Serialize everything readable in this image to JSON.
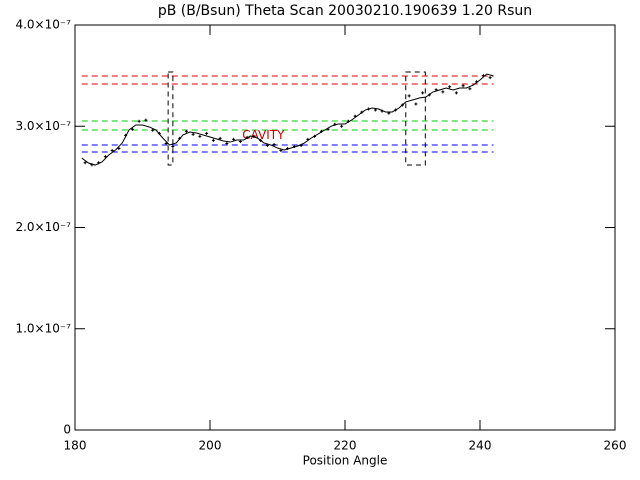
{
  "chart_data": {
    "type": "line",
    "title": "pB (B/Bsun) Theta Scan 20030210.190639 1.20 Rsun",
    "xlabel": "Position Angle",
    "xlim": [
      180,
      260
    ],
    "xticks": [
      180,
      200,
      220,
      240,
      260
    ],
    "ylim": [
      0,
      4e-07
    ],
    "yticks": [
      0,
      {
        "value": 1e-07,
        "label": "1.0×10⁻⁷"
      },
      {
        "value": 2e-07,
        "label": "2.0×10⁻⁷"
      },
      {
        "value": 3e-07,
        "label": "3.0×10⁻⁷"
      },
      {
        "value": 4e-07,
        "label": "4.0×10⁻⁷"
      }
    ],
    "series": [
      {
        "mode": "line",
        "color": "#000000",
        "x": [
          181,
          182,
          183,
          184,
          185,
          186,
          187,
          188,
          189,
          190,
          191,
          192,
          193,
          194,
          195,
          196,
          197,
          198,
          199,
          200,
          201,
          202,
          203,
          204,
          205,
          206,
          207,
          208,
          209,
          210,
          211,
          212,
          213,
          214,
          215,
          216,
          217,
          218,
          219,
          220,
          221,
          222,
          223,
          224,
          225,
          226,
          227,
          228,
          229,
          230,
          231,
          232,
          233,
          234,
          235,
          236,
          237,
          238,
          239,
          240,
          241,
          242
        ],
        "values": [
          2.686e-07,
          2.637e-07,
          2.617e-07,
          2.647e-07,
          2.716e-07,
          2.765e-07,
          2.835e-07,
          2.963e-07,
          3.012e-07,
          3.012e-07,
          2.993e-07,
          2.963e-07,
          2.884e-07,
          2.815e-07,
          2.835e-07,
          2.914e-07,
          2.943e-07,
          2.933e-07,
          2.914e-07,
          2.894e-07,
          2.874e-07,
          2.854e-07,
          2.844e-07,
          2.864e-07,
          2.864e-07,
          2.904e-07,
          2.884e-07,
          2.835e-07,
          2.815e-07,
          2.785e-07,
          2.765e-07,
          2.785e-07,
          2.805e-07,
          2.835e-07,
          2.884e-07,
          2.923e-07,
          2.963e-07,
          3.002e-07,
          3.022e-07,
          3.022e-07,
          3.062e-07,
          3.111e-07,
          3.16e-07,
          3.18e-07,
          3.17e-07,
          3.141e-07,
          3.141e-07,
          3.18e-07,
          3.24e-07,
          3.259e-07,
          3.279e-07,
          3.289e-07,
          3.338e-07,
          3.358e-07,
          3.378e-07,
          3.358e-07,
          3.378e-07,
          3.378e-07,
          3.407e-07,
          3.457e-07,
          3.516e-07,
          3.496e-07
        ]
      },
      {
        "mode": "markers",
        "color": "#000000",
        "x": [
          181.5,
          182.5,
          183.5,
          184.5,
          185.5,
          186.5,
          187.5,
          188.5,
          189.5,
          190.5,
          191.5,
          192.5,
          193.5,
          194.5,
          195.5,
          196.5,
          197.5,
          198.5,
          199.5,
          200.5,
          201.5,
          202.5,
          203.5,
          204.5,
          205.5,
          206.5,
          207.5,
          208.5,
          209.5,
          210.5,
          211.5,
          212.5,
          213.5,
          214.5,
          215.5,
          216.5,
          217.5,
          218.5,
          219.5,
          220.5,
          221.5,
          222.5,
          223.5,
          224.5,
          225.5,
          226.5,
          227.5,
          228.5,
          229.5,
          230.5,
          231.5,
          232.5,
          233.5,
          234.5,
          235.5,
          236.5,
          237.5,
          238.5,
          239.5,
          240.5,
          241.5
        ],
        "values": [
          2.64e-07,
          2.62e-07,
          2.64e-07,
          2.7e-07,
          2.76e-07,
          2.78e-07,
          2.91e-07,
          2.97e-07,
          3.05e-07,
          3.06e-07,
          2.96e-07,
          2.93e-07,
          2.83e-07,
          2.8e-07,
          2.88e-07,
          2.95e-07,
          2.92e-07,
          2.9e-07,
          2.93e-07,
          2.86e-07,
          2.88e-07,
          2.83e-07,
          2.87e-07,
          2.85e-07,
          2.89e-07,
          2.9e-07,
          2.86e-07,
          2.81e-07,
          2.82e-07,
          2.76e-07,
          2.78e-07,
          2.8e-07,
          2.81e-07,
          2.87e-07,
          2.9e-07,
          2.95e-07,
          2.97e-07,
          3.02e-07,
          3e-07,
          3.05e-07,
          3.1e-07,
          3.14e-07,
          3.17e-07,
          3.16e-07,
          3.15e-07,
          3.13e-07,
          3.16e-07,
          3.21e-07,
          3.3e-07,
          3.22e-07,
          3.33e-07,
          3.31e-07,
          3.36e-07,
          3.34e-07,
          3.39e-07,
          3.33e-07,
          3.4e-07,
          3.37e-07,
          3.44e-07,
          3.5e-07,
          3.48e-07
        ]
      }
    ],
    "hlines": [
      {
        "value": 3.496e-07,
        "color": "#dd0000"
      },
      {
        "value": 3.417e-07,
        "color": "#dd0000"
      },
      {
        "value": 3.052e-07,
        "color": "#00cc00"
      },
      {
        "value": 2.963e-07,
        "color": "#00cc00"
      },
      {
        "value": 2.815e-07,
        "color": "#0000ff"
      },
      {
        "value": 2.746e-07,
        "color": "#0000ff"
      }
    ],
    "boxes": [
      {
        "xlim": [
          193.8,
          194.5
        ],
        "ylim": [
          2.617e-07,
          3.536e-07
        ]
      },
      {
        "xlim": [
          229.0,
          231.9
        ],
        "ylim": [
          2.617e-07,
          3.536e-07
        ]
      }
    ],
    "annotations": [
      {
        "text": "CAVITY",
        "x": 207.9,
        "y": 2.91e-07,
        "color": "#cc0000"
      }
    ]
  }
}
